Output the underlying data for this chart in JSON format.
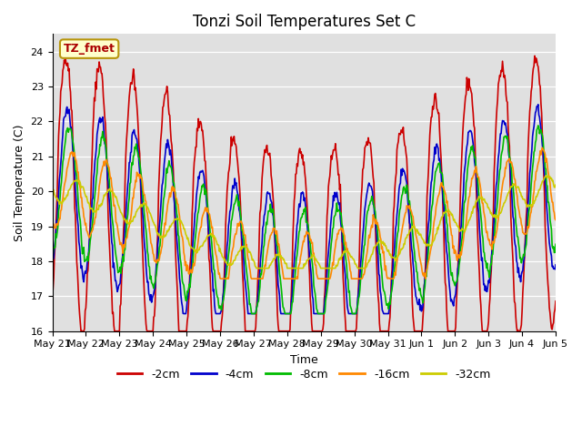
{
  "title": "Tonzi Soil Temperatures Set C",
  "xlabel": "Time",
  "ylabel": "Soil Temperature (C)",
  "ylim": [
    16.0,
    24.5
  ],
  "yticks": [
    16.0,
    17.0,
    18.0,
    19.0,
    20.0,
    21.0,
    22.0,
    23.0,
    24.0
  ],
  "plot_bg": "#e0e0e0",
  "fig_bg": "#ffffff",
  "annotation_text": "TZ_fmet",
  "annotation_bg": "#ffffcc",
  "annotation_border": "#b8960c",
  "annotation_text_color": "#aa0000",
  "colors": [
    "#cc0000",
    "#0000cc",
    "#00bb00",
    "#ff8800",
    "#cccc00"
  ],
  "legend_labels": [
    "-2cm",
    "-4cm",
    "-8cm",
    "-16cm",
    "-32cm"
  ],
  "x_tick_labels": [
    "May 21",
    "May 22",
    "May 23",
    "May 24",
    "May 25",
    "May 26",
    "May 27",
    "May 28",
    "May 29",
    "May 30",
    "May 31",
    "Jun 1",
    "Jun 2",
    "Jun 3",
    "Jun 4",
    "Jun 5"
  ],
  "linewidth": 1.2
}
